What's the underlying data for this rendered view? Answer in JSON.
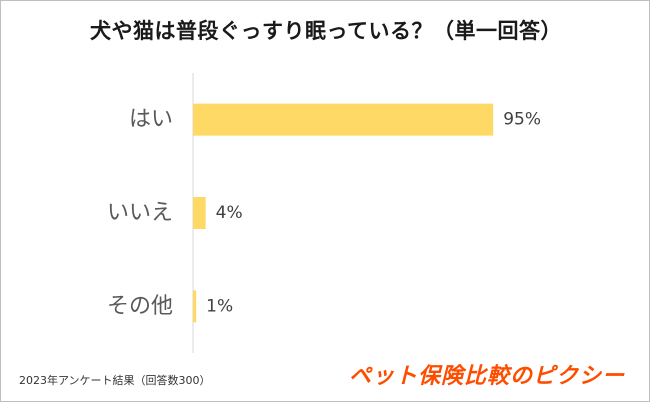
{
  "chart_data": {
    "type": "bar",
    "orientation": "horizontal",
    "title": "犬や猫は普段ぐっすり眠っている？（単一回答）",
    "categories": [
      "はい",
      "いいえ",
      "その他"
    ],
    "values": [
      95,
      4,
      1
    ],
    "value_labels": [
      "95%",
      "4%",
      "1%"
    ],
    "unit": "%",
    "xlim": [
      0,
      100
    ],
    "grid": false,
    "legend": "none",
    "bar_color": "#ffd966",
    "axis_color": "#d9d9d9"
  },
  "footnote": "2023年アンケート結果（回答数300）",
  "brand": "ペット保険比較のピクシー"
}
